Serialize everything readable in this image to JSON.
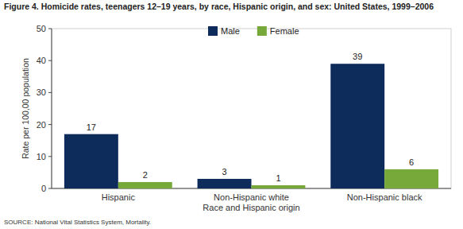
{
  "chart_data": {
    "type": "bar",
    "title": "Figure 4. Homicide rates, teenagers 12–19 years, by race, Hispanic origin, and sex: United States, 1999–2006",
    "y_label": "Rate per 100,00 population",
    "x_label": "Race and Hispanic origin",
    "source": "SOURCE: National Vital Statistics System, Mortality.",
    "categories": [
      "Hispanic",
      "Non-Hispanic white",
      "Non-Hispanic black"
    ],
    "series": [
      {
        "name": "Male",
        "color": "#0d2b5b",
        "values": [
          17,
          3,
          39
        ]
      },
      {
        "name": "Female",
        "color": "#76a83a",
        "values": [
          2,
          1,
          6
        ]
      }
    ],
    "ylim": [
      0,
      50
    ],
    "yticks": [
      0,
      10,
      20,
      30,
      40,
      50
    ],
    "grid": false,
    "legend": "top",
    "data_labels": true
  }
}
